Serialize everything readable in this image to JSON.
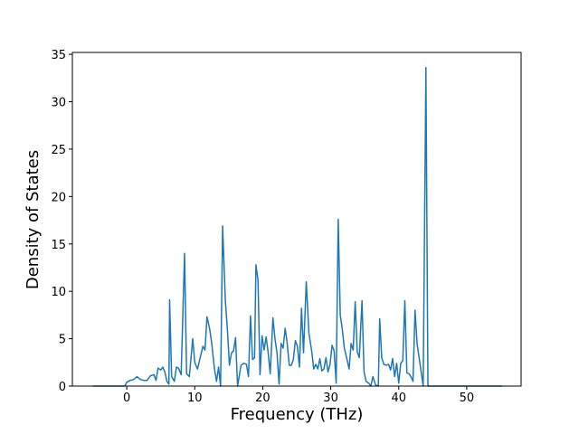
{
  "chart_data": {
    "type": "line",
    "x_label": "Frequency (THz)",
    "y_label": "Density of States",
    "xlim": [
      -8,
      58
    ],
    "ylim": [
      0,
      35.2
    ],
    "xticks": [
      0,
      10,
      20,
      30,
      40,
      50
    ],
    "yticks": [
      0,
      5,
      10,
      15,
      20,
      25,
      30,
      35
    ],
    "grid": false,
    "x": [
      -5,
      -0.3,
      0,
      0.5,
      1,
      1.5,
      2,
      2.5,
      3,
      3.5,
      4,
      4.3,
      4.6,
      5,
      5.3,
      5.6,
      5.9,
      6.2,
      6.3,
      6.6,
      7.0,
      7.3,
      7.6,
      8.0,
      8.5,
      8.8,
      9.2,
      9.7,
      10,
      10.4,
      10.8,
      11.2,
      11.5,
      11.8,
      12.2,
      12.5,
      12.9,
      13.2,
      13.5,
      13.8,
      14.1,
      14.5,
      14.8,
      15.1,
      15.4,
      15.7,
      16.0,
      16.3,
      16.8,
      17.2,
      17.6,
      17.9,
      18.2,
      18.5,
      18.8,
      19.0,
      19.3,
      19.6,
      19.9,
      20.2,
      20.5,
      20.8,
      21.1,
      21.5,
      21.8,
      22.1,
      22.4,
      22.7,
      23.0,
      23.3,
      23.6,
      23.9,
      24.2,
      24.5,
      24.8,
      25.1,
      25.4,
      25.7,
      26.0,
      26.4,
      26.8,
      27.2,
      27.5,
      27.8,
      28.1,
      28.4,
      28.7,
      29.0,
      29.3,
      29.6,
      29.9,
      30.2,
      30.5,
      30.8,
      31.1,
      31.4,
      31.7,
      32.0,
      32.4,
      32.7,
      33.0,
      33.3,
      33.6,
      33.9,
      34.2,
      34.6,
      34.9,
      35.2,
      35.6,
      35.9,
      36.2,
      36.6,
      37.0,
      37.2,
      37.5,
      37.8,
      38.2,
      38.5,
      38.8,
      39.1,
      39.4,
      39.7,
      40.0,
      40.3,
      40.6,
      40.9,
      41.2,
      41.5,
      41.8,
      42.1,
      42.4,
      42.7,
      43.0,
      43.3,
      43.6,
      44.0,
      44.3,
      45,
      55.2
    ],
    "series": [
      {
        "color": "#1f77b4",
        "values": [
          0,
          0,
          0.4,
          0.6,
          0.7,
          1.0,
          0.7,
          0.6,
          0.6,
          1.1,
          1.2,
          0.6,
          1.9,
          1.7,
          2.0,
          1.5,
          0.5,
          0.2,
          9.1,
          1.0,
          0.5,
          2.0,
          1.9,
          1.2,
          14.0,
          1.3,
          1.0,
          5.0,
          2.5,
          1.8,
          3.0,
          4.2,
          3.8,
          7.3,
          6.0,
          4.5,
          1.8,
          0.5,
          2.0,
          0,
          16.9,
          9.0,
          6.0,
          2.2,
          3.5,
          3.7,
          5.1,
          0,
          2.2,
          2.4,
          2.3,
          1.0,
          7.4,
          2.8,
          3.0,
          12.8,
          11.2,
          1.2,
          5.3,
          3.8,
          5.2,
          3.5,
          1.3,
          7.2,
          5.0,
          3.5,
          0.2,
          4.5,
          4.0,
          6.1,
          4.5,
          2.2,
          2.2,
          2.8,
          4.8,
          4.2,
          2.0,
          8.2,
          3.5,
          11.0,
          5.5,
          3.7,
          1.8,
          2.3,
          1.8,
          2.9,
          1.6,
          1.8,
          3.0,
          1.5,
          2.3,
          4.3,
          3.7,
          0.3,
          17.6,
          7.5,
          6.0,
          4.0,
          2.8,
          1.8,
          4.5,
          3.8,
          8.9,
          3.6,
          3.0,
          9.0,
          1.5,
          0.5,
          0.3,
          0,
          1.0,
          0.1,
          0,
          7.1,
          3.0,
          2.3,
          2.2,
          2.3,
          1.7,
          2.9,
          1.0,
          2.4,
          0.3,
          2.4,
          2.7,
          9.0,
          1.4,
          1.3,
          1.0,
          0.5,
          8.0,
          4.5,
          3.0,
          1.5,
          0,
          33.6,
          0,
          0,
          0
        ]
      }
    ]
  }
}
